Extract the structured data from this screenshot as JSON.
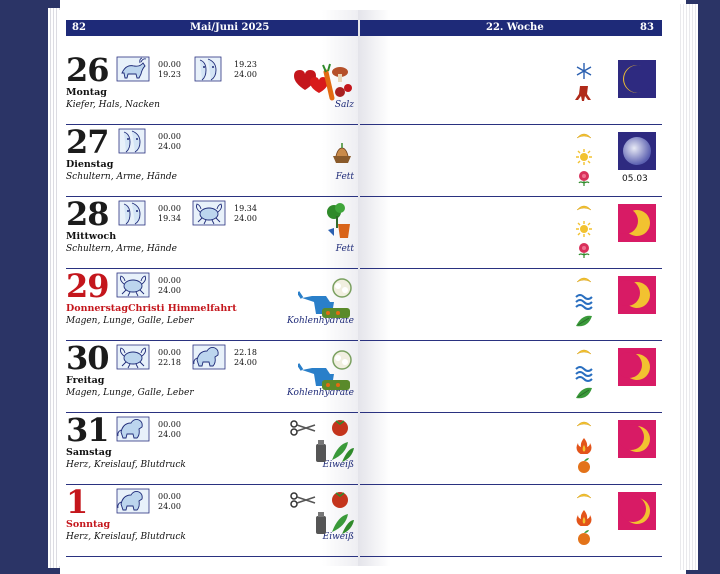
{
  "header": {
    "left_page_number": "82",
    "left_title": "Mai/Juni 2025",
    "right_title": "22. Woche",
    "right_page_number": "83"
  },
  "days": [
    {
      "day": "26",
      "weekday": "Montag",
      "holiday": "",
      "body": "Kiefer, Hals, Nacken",
      "nutrient": "Salz",
      "times1": [
        "00.00",
        "19.23"
      ],
      "times2": [
        "19.23",
        "24.00"
      ],
      "signs": [
        "taurus",
        "gemini"
      ],
      "red": false,
      "moon_date": "",
      "moon_color": "#2e2a80"
    },
    {
      "day": "27",
      "weekday": "Dienstag",
      "holiday": "",
      "body": "Schultern, Arme, Hände",
      "nutrient": "Fett",
      "times1": [
        "00.00",
        "24.00"
      ],
      "times2": [],
      "signs": [
        "gemini"
      ],
      "red": false,
      "moon_date": "05.03",
      "moon_color": "#2e2a80"
    },
    {
      "day": "28",
      "weekday": "Mittwoch",
      "holiday": "",
      "body": "Schultern, Arme, Hände",
      "nutrient": "Fett",
      "times1": [
        "00.00",
        "19.34"
      ],
      "times2": [
        "19.34",
        "24.00"
      ],
      "signs": [
        "gemini",
        "cancer"
      ],
      "red": false,
      "moon_date": "",
      "moon_color": "#d81b65"
    },
    {
      "day": "29",
      "weekday": "Donnerstag",
      "holiday": "Christi Himmelfahrt",
      "body": "Magen, Lunge, Galle, Leber",
      "nutrient": "Kohlenhydrate",
      "times1": [
        "00.00",
        "24.00"
      ],
      "times2": [],
      "signs": [
        "cancer"
      ],
      "red": true,
      "moon_date": "",
      "moon_color": "#d81b65"
    },
    {
      "day": "30",
      "weekday": "Freitag",
      "holiday": "",
      "body": "Magen, Lunge, Galle, Leber",
      "nutrient": "Kohlenhydrate",
      "times1": [
        "00.00",
        "22.18"
      ],
      "times2": [
        "22.18",
        "24.00"
      ],
      "signs": [
        "cancer",
        "leo"
      ],
      "red": false,
      "moon_date": "",
      "moon_color": "#d81b65"
    },
    {
      "day": "31",
      "weekday": "Samstag",
      "holiday": "",
      "body": "Herz, Kreislauf, Blutdruck",
      "nutrient": "Eiweiß",
      "times1": [
        "00.00",
        "24.00"
      ],
      "times2": [],
      "signs": [
        "leo"
      ],
      "red": false,
      "moon_date": "",
      "moon_color": "#d81b65"
    },
    {
      "day": "1",
      "weekday": "Sonntag",
      "holiday": "",
      "body": "Herz, Kreislauf, Blutdruck",
      "nutrient": "Eiweiß",
      "times1": [
        "00.00",
        "24.00"
      ],
      "times2": [],
      "signs": [
        "leo"
      ],
      "red": true,
      "moon_date": "",
      "moon_color": "#d81b65"
    }
  ],
  "colors": {
    "header": "#1e2a78",
    "rule": "#2a3280",
    "red": "#c4161c",
    "moon_dark": "#2e2a80",
    "moon_pink": "#d81b65",
    "moon_yellow": "#f2c230"
  }
}
